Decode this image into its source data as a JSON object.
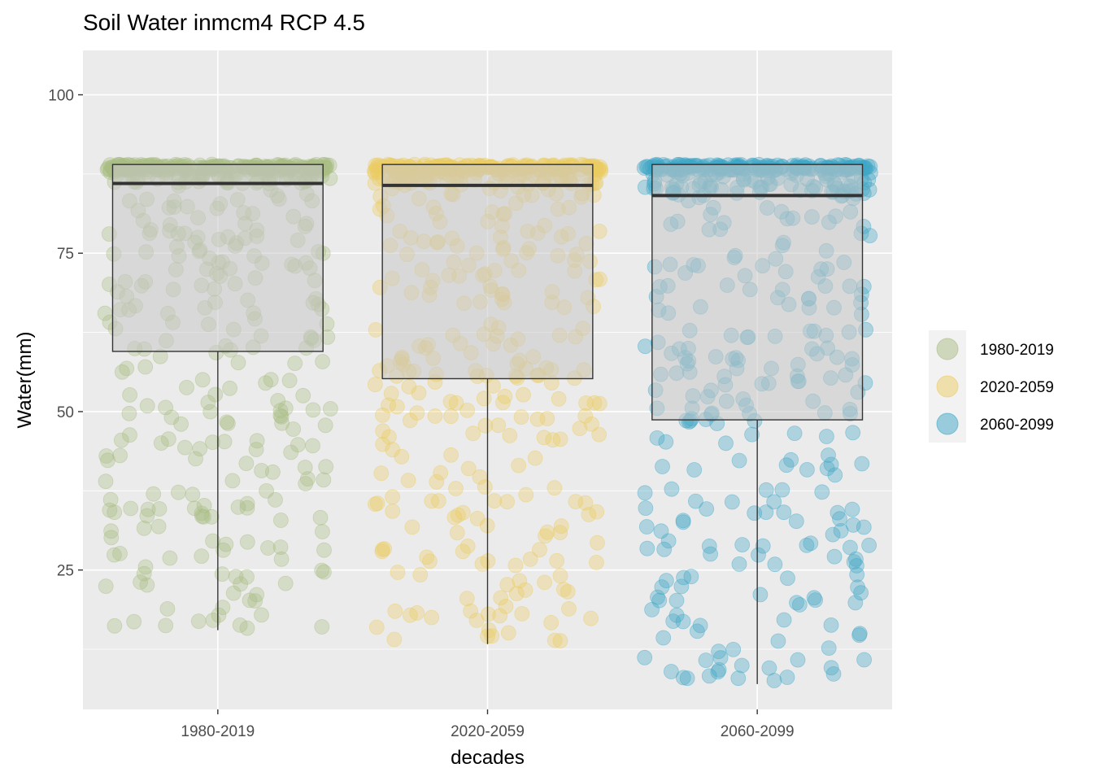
{
  "chart_data": {
    "type": "box-jitter",
    "title": "Soil Water inmcm4 RCP 4.5",
    "xlabel": "decades",
    "ylabel": "Water(mm)",
    "categories": [
      "1980-2019",
      "2020-2059",
      "2060-2099"
    ],
    "ylim": [
      3,
      107
    ],
    "yticks": [
      25,
      50,
      75,
      100
    ],
    "grid": true,
    "legend": {
      "position": "right",
      "entries": [
        "1980-2019",
        "2020-2059",
        "2060-2099"
      ]
    },
    "colors": [
      "#a9bc83",
      "#eccb62",
      "#3ea6c7"
    ],
    "boxes": [
      {
        "category": "1980-2019",
        "min": 15.5,
        "q1": 59.5,
        "median": 86.0,
        "q3": 89.0,
        "max": 89.0
      },
      {
        "category": "2020-2059",
        "min": 13.3,
        "q1": 55.2,
        "median": 85.7,
        "q3": 89.0,
        "max": 89.0
      },
      {
        "category": "2060-2099",
        "min": 7.0,
        "q1": 48.7,
        "median": 84.1,
        "q3": 89.0,
        "max": 89.0
      }
    ],
    "point_count_per_group": 480,
    "point_cap_value": 89
  }
}
